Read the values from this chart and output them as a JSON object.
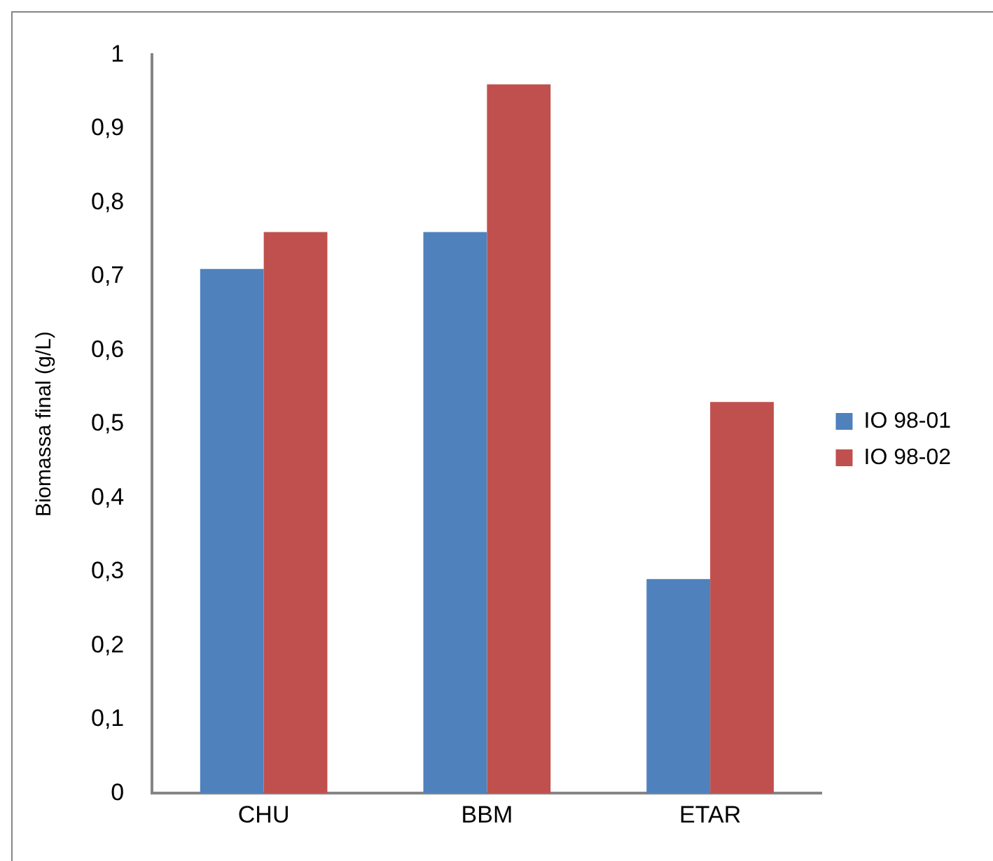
{
  "chart_data": {
    "type": "bar",
    "ylabel": "Biomassa final (g/L)",
    "categories": [
      "CHU",
      "BBM",
      "ETAR"
    ],
    "series": [
      {
        "name": "IO 98-01",
        "color": "#4f81bd",
        "values": [
          0.71,
          0.76,
          0.29
        ]
      },
      {
        "name": "IO 98-02",
        "color": "#c0504d",
        "values": [
          0.76,
          0.96,
          0.53
        ]
      }
    ],
    "ylim": [
      0,
      1
    ],
    "yticks": [
      0,
      {
        "value": 0.1,
        "label": "0,1"
      },
      {
        "value": 0.2,
        "label": "0,2"
      },
      {
        "value": 0.3,
        "label": "0,3"
      },
      {
        "value": 0.4,
        "label": "0,4"
      },
      {
        "value": 0.5,
        "label": "0,5"
      },
      {
        "value": 0.6,
        "label": "0,6"
      },
      {
        "value": 0.7,
        "label": "0,7"
      },
      {
        "value": 0.8,
        "label": "0,8"
      },
      {
        "value": 0.9,
        "label": "0,9"
      },
      1
    ],
    "grid": false,
    "legend": "right"
  }
}
